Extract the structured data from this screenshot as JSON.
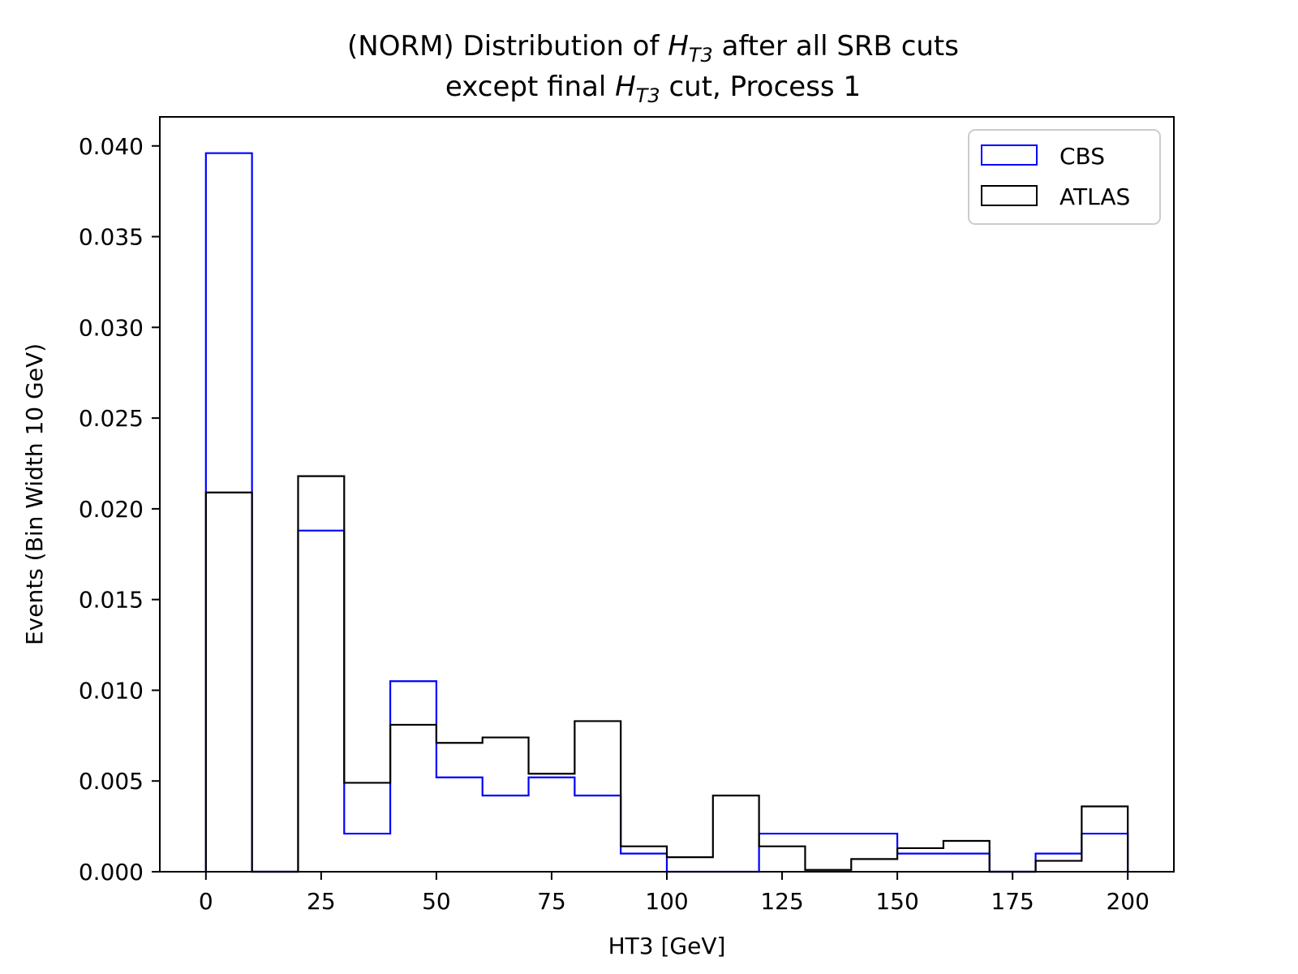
{
  "chart_data": {
    "type": "histogram-step",
    "title_line1_pre": "(NORM) Distribution of ",
    "title_line1_post": " after all SRB cuts",
    "title_line2_pre": "except final ",
    "title_line2_post": " cut, Process 1",
    "title_symbol_main": "H",
    "title_symbol_sub": "T3",
    "xlabel": "HT3 [GeV]",
    "ylabel": "Events (Bin Width 10 GeV)",
    "xlim": [
      -10,
      210
    ],
    "ylim": [
      0,
      0.0416
    ],
    "xticks": [
      0,
      25,
      50,
      75,
      100,
      125,
      150,
      175,
      200
    ],
    "xtick_labels": [
      "0",
      "25",
      "50",
      "75",
      "100",
      "125",
      "150",
      "175",
      "200"
    ],
    "yticks": [
      0,
      0.005,
      0.01,
      0.015,
      0.02,
      0.025,
      0.03,
      0.035,
      0.04
    ],
    "ytick_labels": [
      "0.000",
      "0.005",
      "0.010",
      "0.015",
      "0.020",
      "0.025",
      "0.030",
      "0.035",
      "0.040"
    ],
    "bin_edges": [
      0,
      10,
      20,
      30,
      40,
      50,
      60,
      70,
      80,
      90,
      100,
      110,
      120,
      130,
      140,
      150,
      160,
      170,
      180,
      190,
      200
    ],
    "legend_position": "upper-right",
    "series": [
      {
        "name": "CBS",
        "color": "#0000ff",
        "values": [
          0.0396,
          0.0,
          0.0188,
          0.0021,
          0.0105,
          0.0052,
          0.0042,
          0.0052,
          0.0042,
          0.001,
          0.0,
          0.0,
          0.0021,
          0.0021,
          0.0021,
          0.001,
          0.001,
          0.0,
          0.001,
          0.0021
        ]
      },
      {
        "name": "ATLAS",
        "color": "#000000",
        "values": [
          0.0209,
          0.0,
          0.0218,
          0.0049,
          0.0081,
          0.0071,
          0.0074,
          0.0054,
          0.0083,
          0.0014,
          0.0008,
          0.0042,
          0.0014,
          0.0001,
          0.0007,
          0.0013,
          0.0017,
          0.0,
          0.0006,
          0.0036
        ]
      }
    ]
  }
}
